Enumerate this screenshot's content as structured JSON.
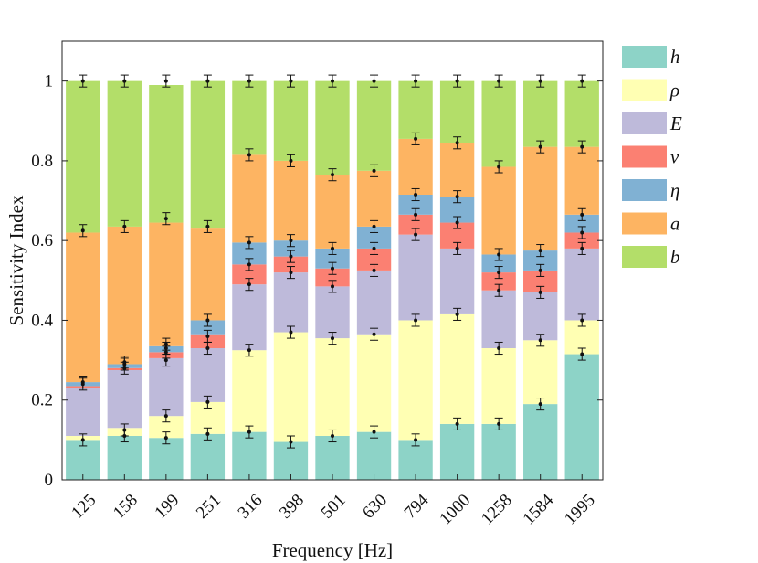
{
  "chart_data": {
    "type": "bar",
    "stacked": true,
    "xlabel": "Frequency [Hz]",
    "ylabel": "Sensitivity Index",
    "ylim": [
      0,
      1.1
    ],
    "yticks": [
      0,
      0.2,
      0.4,
      0.6,
      0.8,
      1
    ],
    "ytick_labels": [
      "0",
      "0.2",
      "0.4",
      "0.6",
      "0.8",
      "1"
    ],
    "categories": [
      "125",
      "158",
      "199",
      "251",
      "316",
      "398",
      "501",
      "630",
      "794",
      "1000",
      "1258",
      "1584",
      "1995"
    ],
    "legend_position": "outside-right",
    "series": [
      {
        "name": "h",
        "color": "#8dd3c7",
        "values": [
          0.1,
          0.11,
          0.105,
          0.115,
          0.12,
          0.095,
          0.11,
          0.12,
          0.1,
          0.14,
          0.14,
          0.19,
          0.315
        ]
      },
      {
        "name": "ρ",
        "color": "#ffffb3",
        "values": [
          0.01,
          0.02,
          0.055,
          0.08,
          0.205,
          0.275,
          0.245,
          0.245,
          0.3,
          0.275,
          0.19,
          0.16,
          0.085
        ]
      },
      {
        "name": "E",
        "color": "#bebada",
        "values": [
          0.12,
          0.145,
          0.145,
          0.135,
          0.165,
          0.15,
          0.13,
          0.16,
          0.215,
          0.165,
          0.145,
          0.12,
          0.18
        ]
      },
      {
        "name": "ν",
        "color": "#fb8072",
        "values": [
          0.005,
          0.005,
          0.015,
          0.035,
          0.05,
          0.04,
          0.045,
          0.055,
          0.05,
          0.065,
          0.045,
          0.055,
          0.04
        ]
      },
      {
        "name": "η",
        "color": "#80b1d3",
        "values": [
          0.01,
          0.01,
          0.015,
          0.035,
          0.055,
          0.04,
          0.05,
          0.055,
          0.05,
          0.065,
          0.045,
          0.05,
          0.045
        ]
      },
      {
        "name": "a",
        "color": "#fdb462",
        "values": [
          0.375,
          0.345,
          0.31,
          0.23,
          0.22,
          0.2,
          0.185,
          0.14,
          0.14,
          0.135,
          0.22,
          0.26,
          0.17
        ]
      },
      {
        "name": "b",
        "color": "#b3de69",
        "values": [
          0.38,
          0.365,
          0.345,
          0.37,
          0.185,
          0.2,
          0.235,
          0.225,
          0.145,
          0.155,
          0.215,
          0.165,
          0.165
        ]
      }
    ],
    "error_bars": {
      "cumulative_points": [
        [
          0.1,
          0.24,
          0.245,
          0.625,
          1.0
        ],
        [
          0.11,
          0.125,
          0.28,
          0.29,
          0.295,
          0.635,
          1.0
        ],
        [
          0.105,
          0.16,
          0.3,
          0.32,
          0.33,
          0.34,
          0.655,
          1.0
        ],
        [
          0.115,
          0.195,
          0.33,
          0.36,
          0.4,
          0.635,
          1.0
        ],
        [
          0.12,
          0.325,
          0.49,
          0.54,
          0.595,
          0.815,
          1.0
        ],
        [
          0.095,
          0.37,
          0.52,
          0.56,
          0.6,
          0.8,
          1.0
        ],
        [
          0.11,
          0.355,
          0.485,
          0.53,
          0.58,
          0.765,
          1.0
        ],
        [
          0.12,
          0.365,
          0.525,
          0.58,
          0.635,
          0.775,
          1.0
        ],
        [
          0.1,
          0.4,
          0.615,
          0.665,
          0.715,
          0.855,
          1.0
        ],
        [
          0.14,
          0.415,
          0.58,
          0.645,
          0.71,
          0.845,
          1.0
        ],
        [
          0.14,
          0.33,
          0.475,
          0.52,
          0.565,
          0.785,
          1.0
        ],
        [
          0.19,
          0.35,
          0.47,
          0.525,
          0.575,
          0.835,
          1.0
        ],
        [
          0.315,
          0.4,
          0.58,
          0.62,
          0.665,
          0.835,
          1.0
        ]
      ],
      "half_width": 0.015
    }
  }
}
